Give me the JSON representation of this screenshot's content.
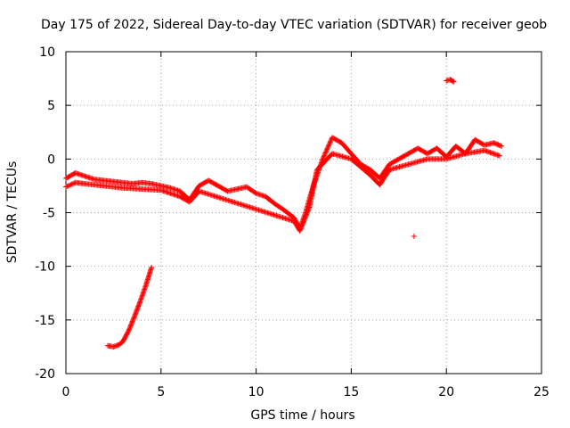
{
  "chart_data": {
    "type": "scatter",
    "title": "Day 175 of 2022, Sidereal Day-to-day VTEC variation (SDTVAR) for receiver geob",
    "xlabel": "GPS time / hours",
    "ylabel": "SDTVAR / TECUs",
    "xlim": [
      0,
      25
    ],
    "ylim": [
      -20,
      10
    ],
    "xticks": [
      0,
      5,
      10,
      15,
      20,
      25
    ],
    "yticks": [
      -20,
      -15,
      -10,
      -5,
      0,
      5,
      10
    ],
    "grid": true,
    "marker": "+",
    "color": "#ff0000",
    "series": [
      {
        "name": "main trace",
        "x": [
          0.0,
          0.5,
          1.0,
          1.5,
          2.0,
          2.5,
          3.0,
          3.5,
          4.0,
          4.5,
          5.0,
          5.5,
          6.0,
          6.5,
          7.0,
          7.5,
          8.0,
          8.5,
          9.0,
          9.5,
          10.0,
          10.5,
          11.0,
          11.5,
          12.0,
          12.3,
          12.6,
          13.0,
          13.5,
          14.0,
          14.5,
          15.0,
          15.5,
          16.0,
          16.5,
          17.0,
          17.5,
          18.0,
          18.5,
          19.0,
          19.5,
          20.0,
          20.5,
          21.0,
          21.5,
          22.0,
          22.5,
          22.9
        ],
        "y": [
          -1.8,
          -1.3,
          -1.6,
          -1.9,
          -2.0,
          -2.1,
          -2.2,
          -2.3,
          -2.2,
          -2.3,
          -2.5,
          -2.7,
          -3.0,
          -3.8,
          -2.5,
          -2.0,
          -2.5,
          -3.0,
          -2.8,
          -2.6,
          -3.2,
          -3.5,
          -4.2,
          -4.8,
          -5.5,
          -6.5,
          -5.0,
          -2.5,
          0.0,
          2.0,
          1.5,
          0.5,
          -0.5,
          -1.0,
          -1.8,
          -0.5,
          0.0,
          0.5,
          1.0,
          0.5,
          1.0,
          0.2,
          1.2,
          0.5,
          1.8,
          1.3,
          1.5,
          1.2
        ]
      },
      {
        "name": "lower branch",
        "x": [
          0.0,
          0.5,
          1.0,
          2.0,
          3.0,
          4.0,
          5.0,
          6.0,
          6.5,
          7.0,
          12.0,
          12.3,
          12.8,
          13.2,
          14.0,
          15.0,
          16.0,
          16.5,
          17.0,
          18.0,
          19.0,
          20.0,
          21.0,
          22.0,
          22.8
        ],
        "y": [
          -2.6,
          -2.2,
          -2.3,
          -2.5,
          -2.7,
          -2.8,
          -2.9,
          -3.5,
          -4.0,
          -3.0,
          -5.8,
          -6.7,
          -4.5,
          -1.0,
          0.5,
          0.0,
          -1.5,
          -2.4,
          -1.0,
          -0.5,
          0.0,
          0.0,
          0.5,
          0.8,
          0.3
        ]
      },
      {
        "name": "steep segment",
        "x": [
          2.2,
          2.5,
          2.8,
          3.0,
          3.3,
          3.6,
          3.9,
          4.2,
          4.5
        ],
        "y": [
          -17.4,
          -17.5,
          -17.3,
          -17.0,
          -16.0,
          -14.7,
          -13.3,
          -11.8,
          -10.1
        ]
      },
      {
        "name": "high cluster",
        "x": [
          20.0,
          20.2,
          20.4
        ],
        "y": [
          7.3,
          7.4,
          7.2
        ]
      },
      {
        "name": "outlier",
        "x": [
          18.3
        ],
        "y": [
          -7.2
        ]
      }
    ]
  }
}
